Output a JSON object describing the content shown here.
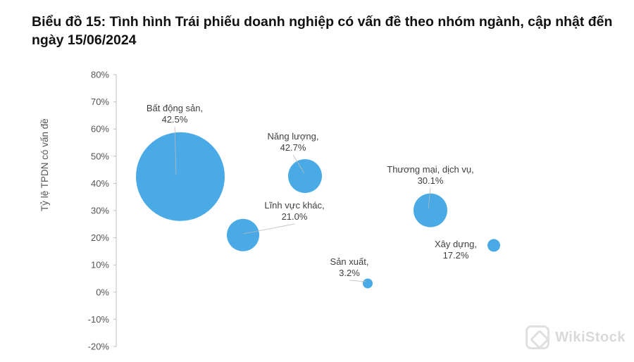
{
  "chart_data": {
    "type": "scatter",
    "subtype": "bubble",
    "title": "Biểu đồ 15: Tình hình Trái phiếu doanh nghiệp có vấn đề theo nhóm ngành, cập nhật đến ngày 15/06/2024",
    "ylabel": "Tỷ lệ TPDN có vấn đề",
    "xlabel": "",
    "ylim": [
      -0.2,
      0.8
    ],
    "yticks": [
      "80%",
      "70%",
      "60%",
      "50%",
      "40%",
      "30%",
      "20%",
      "10%",
      "0%",
      "-10%",
      "-20%"
    ],
    "grid": false,
    "bubble_color": "#4aaae6",
    "points": [
      {
        "label": "Bất động sản",
        "value_label": "42.5%",
        "y": 0.425,
        "size_rank": 1.0
      },
      {
        "label": "Năng lượng",
        "value_label": "42.7%",
        "y": 0.427,
        "size_rank": 0.19
      },
      {
        "label": "Lĩnh vực khác",
        "value_label": "21.0%",
        "y": 0.21,
        "size_rank": 0.18
      },
      {
        "label": "Thương mại, dịch vụ",
        "value_label": "30.1%",
        "y": 0.301,
        "size_rank": 0.19
      },
      {
        "label": "Sản xuất",
        "value_label": "3.2%",
        "y": 0.032,
        "size_rank": 0.06
      },
      {
        "label": "Xây dựng",
        "value_label": "17.2%",
        "y": 0.172,
        "size_rank": 0.08
      }
    ]
  },
  "watermark": "WikiStock"
}
